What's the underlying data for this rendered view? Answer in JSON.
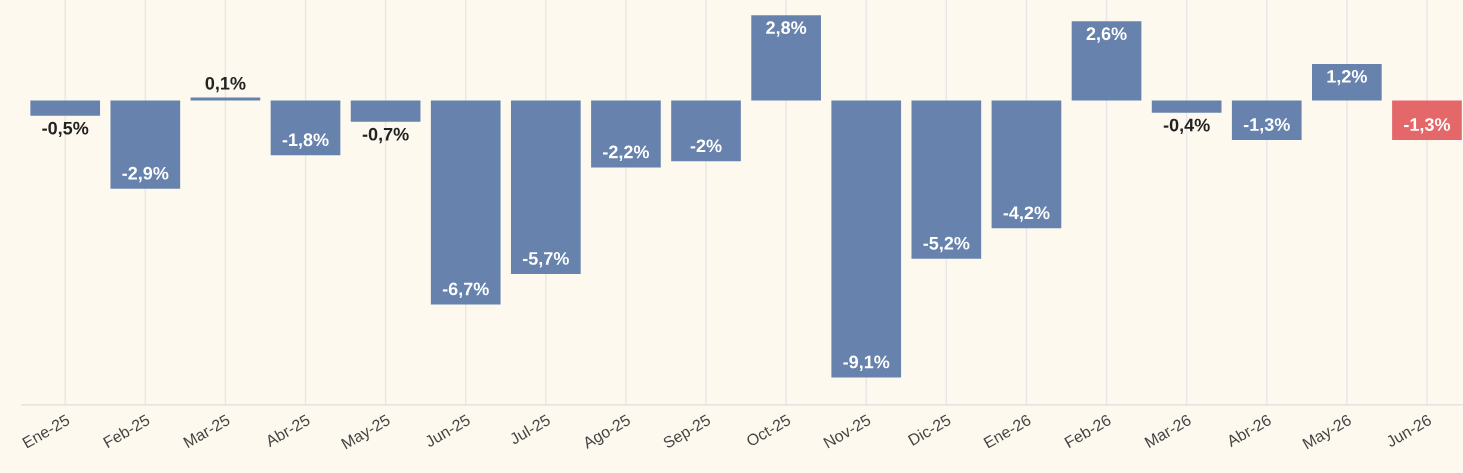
{
  "chart_data": {
    "type": "bar",
    "categories": [
      "Ene-25",
      "Feb-25",
      "Mar-25",
      "Abr-25",
      "May-25",
      "Jun-25",
      "Jul-25",
      "Ago-25",
      "Sep-25",
      "Oct-25",
      "Nov-25",
      "Dic-25",
      "Ene-26",
      "Feb-26",
      "Mar-26",
      "Abr-26",
      "May-26",
      "Jun-26"
    ],
    "values": [
      -0.5,
      -2.9,
      0.1,
      -1.8,
      -0.7,
      -6.7,
      -5.7,
      -2.2,
      -2,
      2.8,
      -9.1,
      -5.2,
      -4.2,
      2.6,
      -0.4,
      -1.3,
      1.2,
      -1.3
    ],
    "colors": [
      "#6783ad",
      "#6783ad",
      "#6783ad",
      "#6783ad",
      "#6783ad",
      "#6783ad",
      "#6783ad",
      "#6783ad",
      "#6783ad",
      "#6783ad",
      "#6783ad",
      "#6783ad",
      "#6783ad",
      "#6783ad",
      "#6783ad",
      "#6783ad",
      "#6783ad",
      "#e4676a"
    ],
    "value_labels": [
      "-0,5%",
      "-2,9%",
      "0,1%",
      "-1,8%",
      "-0,7%",
      "-6,7%",
      "-5,7%",
      "-2,2%",
      "-2%",
      "2,8%",
      "-9,1%",
      "-5,2%",
      "-4,2%",
      "2,6%",
      "-0,4%",
      "-1,3%",
      "1,2%",
      "-1,3%"
    ],
    "ylim": [
      -10,
      3.3
    ],
    "grid": "x",
    "tick_labels": "x",
    "legend": false
  }
}
